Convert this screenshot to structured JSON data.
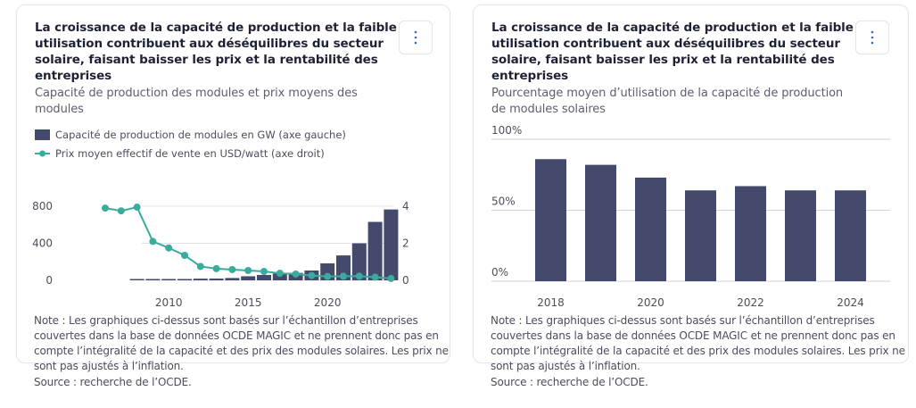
{
  "colors": {
    "bar": "#434a6b",
    "line": "#3bab9c",
    "grid": "#e1e3e8",
    "menu_dots": "#2f6fbf"
  },
  "cards": [
    {
      "title": "La croissance de la capacité de production et la faible utilisation contribuent aux déséquilibres du secteur solaire, faisant baisser les prix et la rentabilité des entreprises",
      "subtitle": "Capacité de production des modules et prix moyens des modules",
      "menu_icon": "kebab-menu-icon",
      "legend": [
        {
          "label": "Capacité de production de modules en GW (axe gauche)",
          "type": "bar"
        },
        {
          "label": "Prix moyen effectif de vente en USD/watt (axe droit)",
          "type": "line"
        }
      ],
      "note": "Note : Les graphiques ci-dessus sont basés sur l’échantillon d’entreprises couvertes dans la base de données OCDE MAGIC et ne prennent donc pas en compte l’intégralité de la capacité et des prix des modules solaires. Les prix ne sont pas ajustés à l’inflation.",
      "source": "Source : recherche de l’OCDE."
    },
    {
      "title": "La croissance de la capacité de production et la faible utilisation contribuent aux déséquilibres du secteur solaire, faisant baisser les prix et la rentabilité des entreprises",
      "subtitle": "Pourcentage moyen d’utilisation de la capacité de production de modules solaires",
      "menu_icon": "kebab-menu-icon",
      "note": "Note : Les graphiques ci-dessus sont basés sur l’échantillon d’entreprises couvertes dans la base de données OCDE MAGIC et ne prennent donc pas en compte l’intégralité de la capacité et des prix des modules solaires. Les prix ne sont pas ajustés à l’inflation.",
      "source": "Source : recherche de l’OCDE."
    }
  ],
  "chart_data": [
    {
      "type": "bar+line",
      "title": "Capacité de production des modules et prix moyens des modules",
      "x": [
        2006,
        2007,
        2008,
        2009,
        2010,
        2011,
        2012,
        2013,
        2014,
        2015,
        2016,
        2017,
        2018,
        2019,
        2020,
        2021,
        2022,
        2023,
        2024
      ],
      "xticks": [
        2010,
        2015,
        2020
      ],
      "series": [
        {
          "name": "Capacité de production de modules en GW (axe gauche)",
          "type": "bar",
          "axis": "left",
          "values": [
            null,
            null,
            5,
            6,
            10,
            12,
            18,
            19,
            25,
            44,
            58,
            73,
            80,
            106,
            183,
            269,
            400,
            631,
            765
          ]
        },
        {
          "name": "Prix moyen effectif de vente en USD/watt (axe droit)",
          "type": "line",
          "axis": "right",
          "values": [
            3.9,
            3.75,
            3.95,
            2.1,
            1.75,
            1.35,
            0.75,
            0.63,
            0.58,
            0.53,
            0.48,
            0.38,
            0.34,
            0.26,
            0.21,
            0.22,
            0.22,
            0.17,
            0.1
          ]
        }
      ],
      "y_left": {
        "ticks": [
          0,
          400,
          800
        ],
        "ylim": [
          0,
          800
        ]
      },
      "y_right": {
        "ticks": [
          0,
          2,
          4
        ],
        "ylim": [
          0,
          4
        ]
      },
      "grid": true,
      "legend": "top-left"
    },
    {
      "type": "bar",
      "title": "Pourcentage moyen d’utilisation de la capacité de production de modules solaires",
      "categories": [
        2018,
        2019,
        2020,
        2021,
        2022,
        2023,
        2024
      ],
      "xticks": [
        2018,
        2020,
        2022,
        2024
      ],
      "values": [
        86,
        82,
        73,
        64,
        67,
        64,
        64
      ],
      "yticks": [
        "0%",
        "50%",
        "100%"
      ],
      "ylim": [
        0,
        100
      ],
      "ylabel": "",
      "grid": true
    }
  ]
}
